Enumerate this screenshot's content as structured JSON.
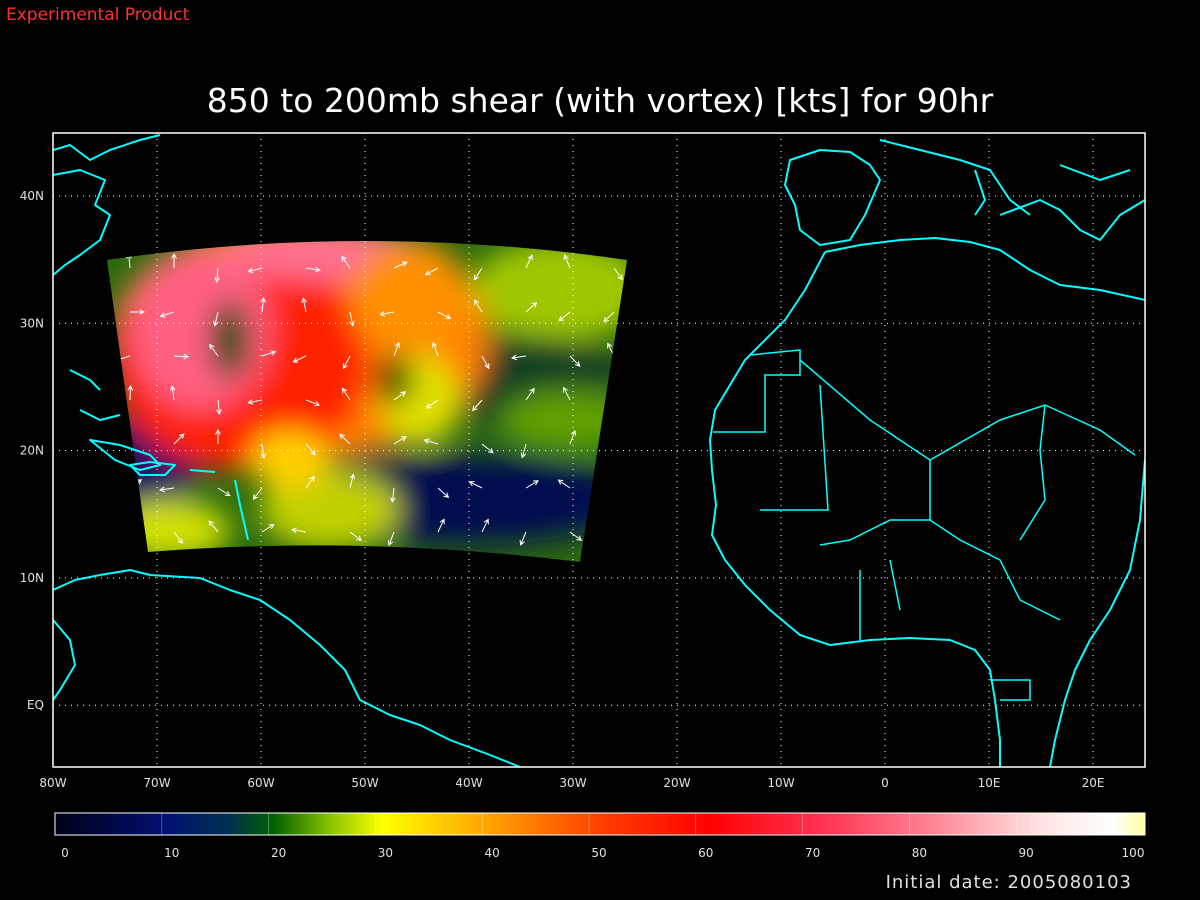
{
  "header": {
    "note": "Experimental Product"
  },
  "title": "850 to 200mb shear (with vortex) [kts] for 90hr",
  "map": {
    "longitude_labels": [
      "80W",
      "70W",
      "60W",
      "50W",
      "40W",
      "30W",
      "20W",
      "10W",
      "0",
      "10E",
      "20E"
    ],
    "latitude_labels": [
      "40N",
      "30N",
      "20N",
      "10N",
      "EQ"
    ]
  },
  "colorbar": {
    "labels": [
      0,
      10,
      20,
      30,
      40,
      50,
      60,
      70,
      80,
      90,
      100
    ]
  },
  "footer": {
    "initial_date": "Initial date: 2005080103"
  }
}
